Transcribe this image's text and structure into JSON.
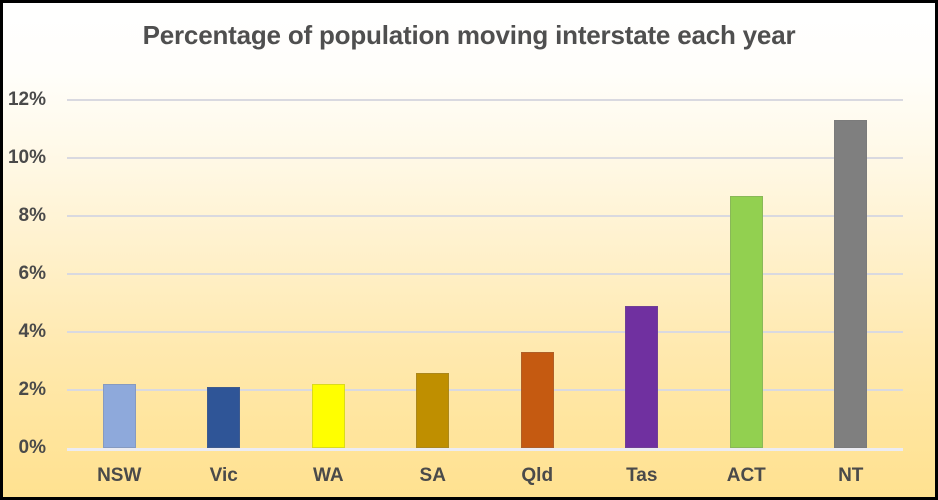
{
  "chart_data": {
    "type": "bar",
    "title": "Percentage of population moving interstate each year",
    "categories": [
      "NSW",
      "Vic",
      "WA",
      "SA",
      "Qld",
      "Tas",
      "ACT",
      "NT"
    ],
    "values": [
      2.2,
      2.1,
      2.2,
      2.6,
      3.3,
      4.9,
      8.7,
      11.3
    ],
    "bar_colors": [
      "#8EA9DB",
      "#2F5597",
      "#FFFF00",
      "#BF8F00",
      "#C55A11",
      "#7030A0",
      "#92D050",
      "#7F7F7F"
    ],
    "xlabel": "",
    "ylabel": "",
    "ylim": [
      0,
      12
    ],
    "ytick_values": [
      0,
      2,
      4,
      6,
      8,
      10,
      12
    ],
    "ytick_labels": [
      "0%",
      "2%",
      "4%",
      "6%",
      "8%",
      "10%",
      "12%"
    ],
    "grid": true,
    "legend": "none",
    "colors": {
      "title_text": "#4F4F4F",
      "axis_text": "#4A4A4A",
      "gridline": "#D9D9E0",
      "axis_line": "#ECECF2",
      "background_top": "#FFFFFF",
      "background_bottom": "#FFE190",
      "frame_border": "#000000"
    }
  }
}
